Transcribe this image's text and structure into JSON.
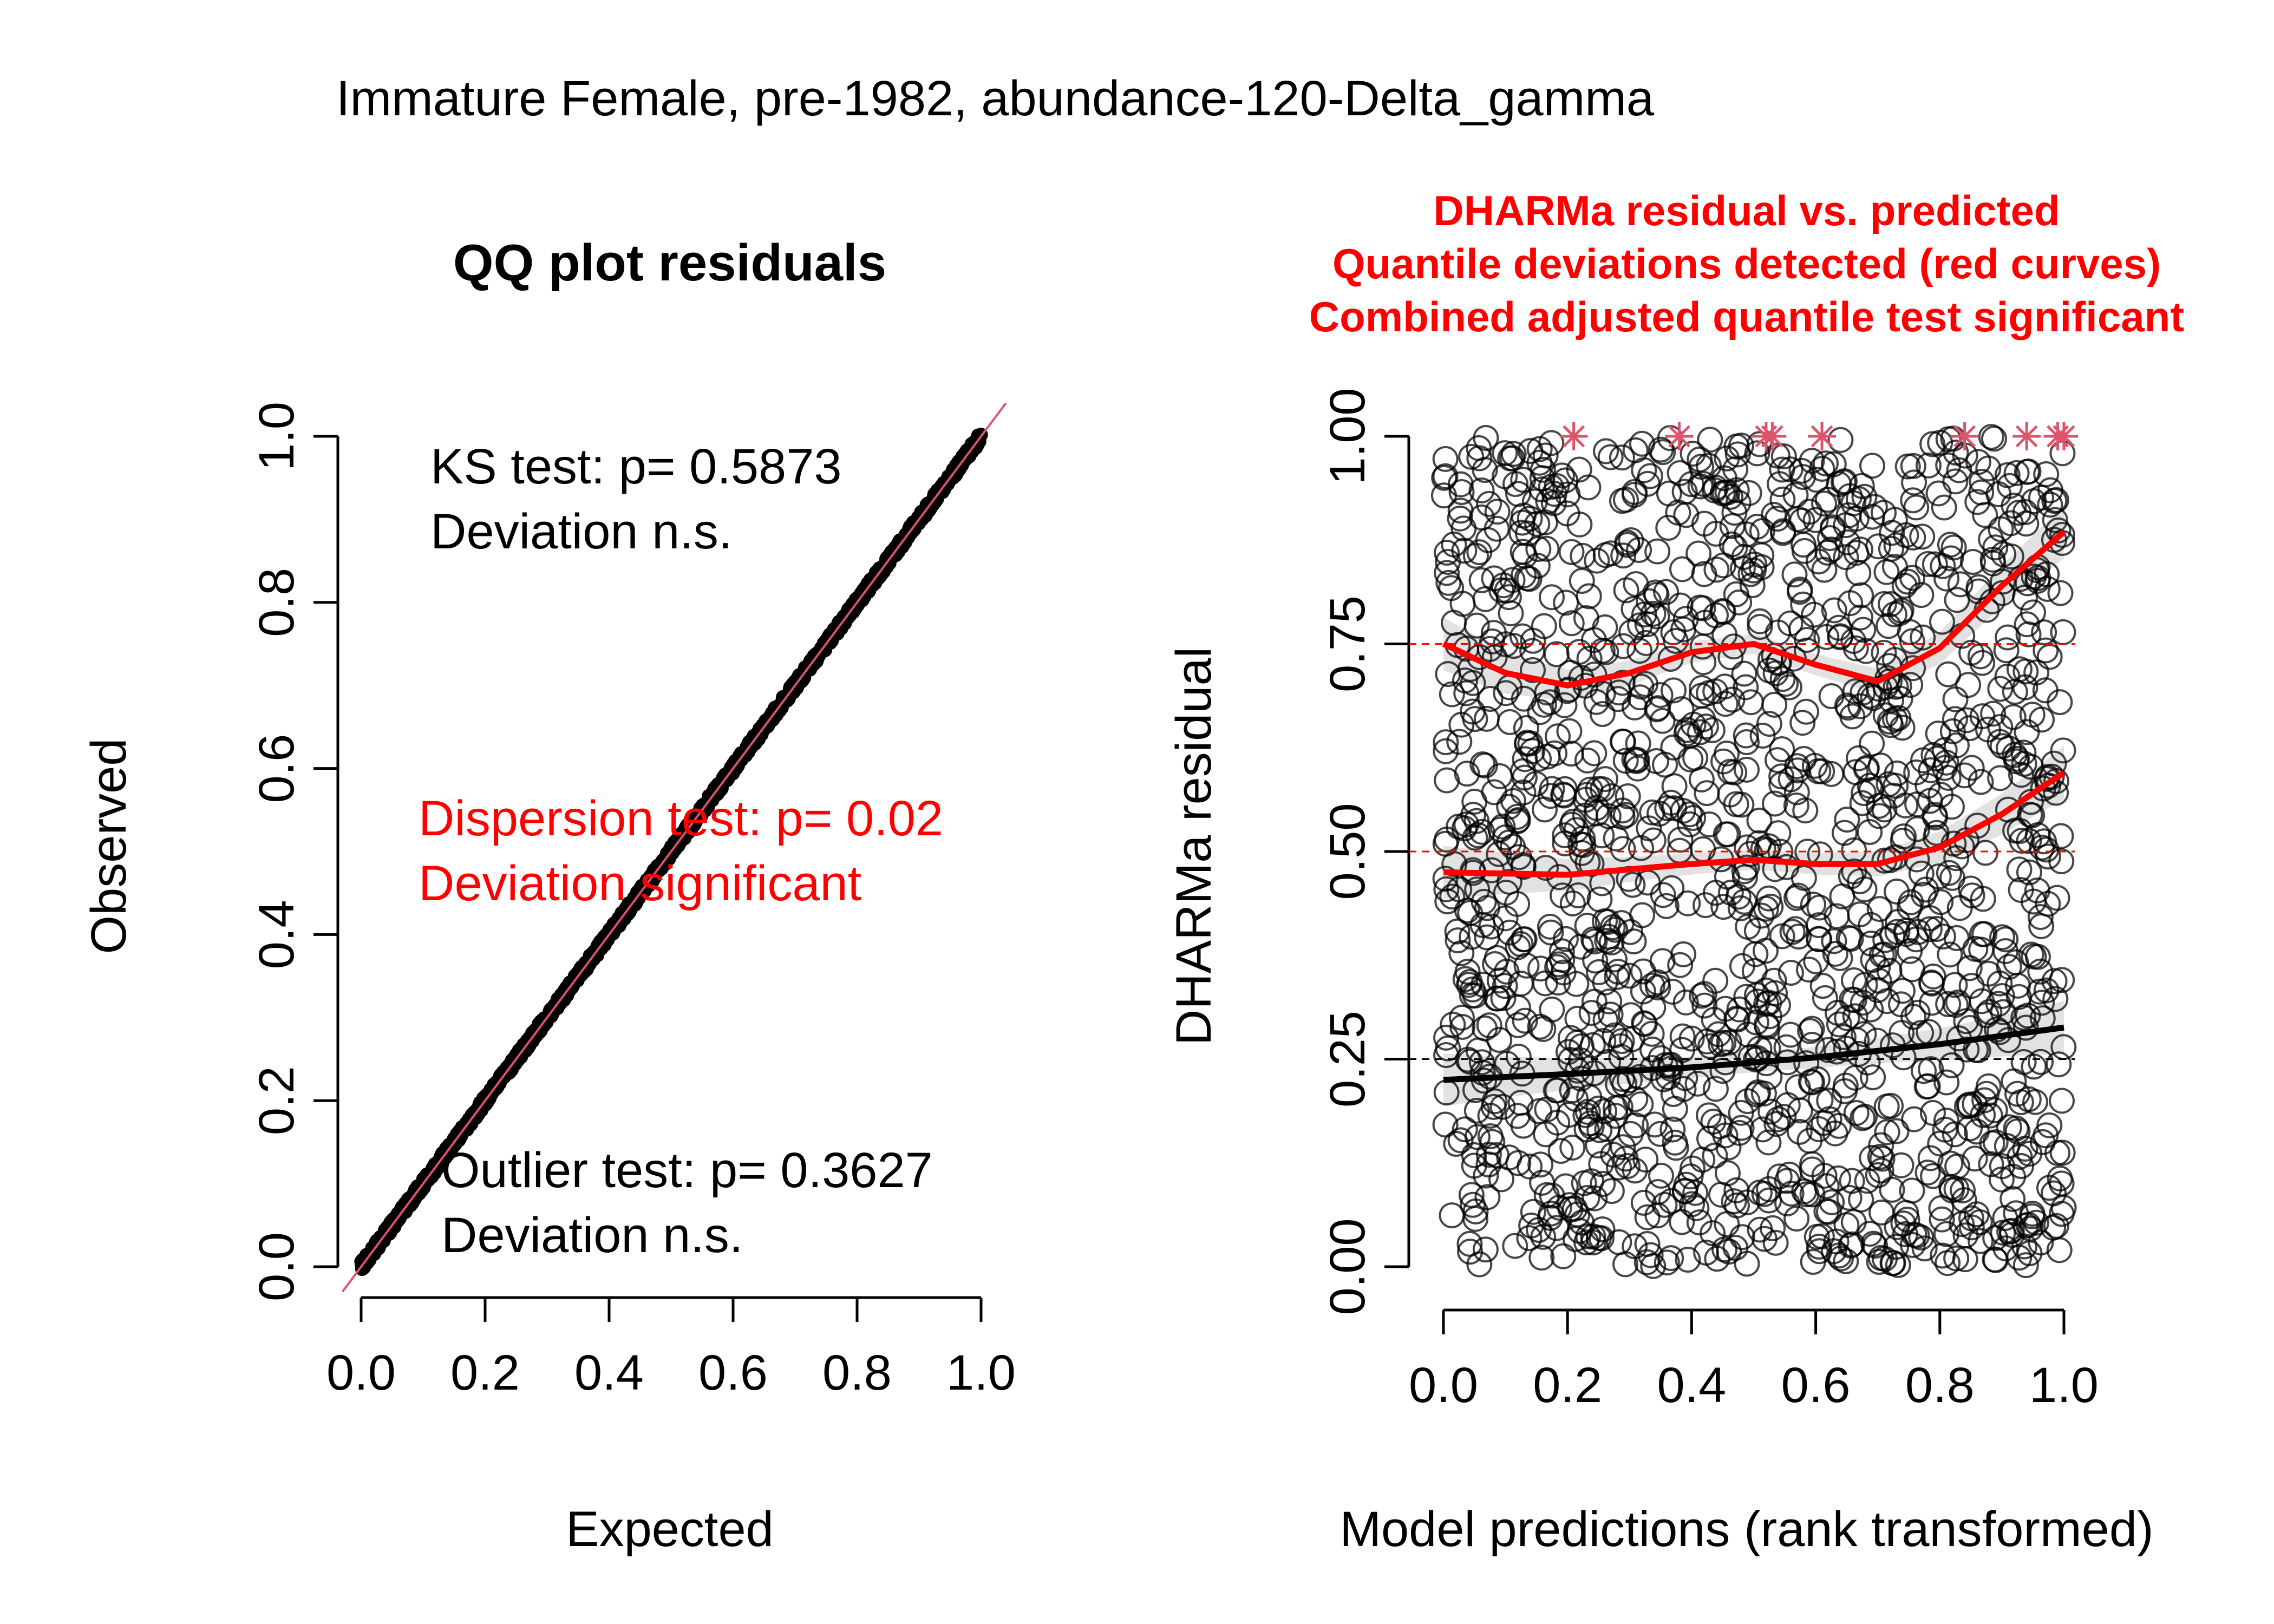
{
  "figure_title": "Immature Female, pre-1982, abundance-120-Delta_gamma",
  "colors": {
    "points": "#000000",
    "significant": "#ff0000",
    "reference_line": "#df536b",
    "band": "#bfbfbf"
  },
  "chart_data": [
    {
      "type": "scatter",
      "title": "QQ plot residuals",
      "xlabel": "Expected",
      "ylabel": "Observed",
      "xlim": [
        0,
        1
      ],
      "ylim": [
        0,
        1
      ],
      "xticks": [
        "0.0",
        "0.2",
        "0.4",
        "0.6",
        "0.8",
        "1.0"
      ],
      "yticks": [
        "0.0",
        "0.2",
        "0.4",
        "0.6",
        "0.8",
        "1.0"
      ],
      "reference_line": {
        "x": [
          0,
          1
        ],
        "y": [
          0,
          1
        ]
      },
      "series": [
        {
          "x": [
            0.0,
            0.1,
            0.2,
            0.3,
            0.4,
            0.5,
            0.6,
            0.7,
            0.8,
            0.9,
            1.0
          ],
          "y": [
            0.0,
            0.1,
            0.2,
            0.3,
            0.4,
            0.5,
            0.6,
            0.7,
            0.8,
            0.9,
            1.0
          ]
        }
      ],
      "annotations": {
        "ks": {
          "line1": "KS test: p= 0.5873",
          "line2": "Deviation  n.s."
        },
        "dispersion": {
          "line1": "Dispersion test: p= 0.02",
          "line2": "Deviation  significant"
        },
        "outlier": {
          "line1": "Outlier test: p= 0.3627",
          "line2": "Deviation  n.s."
        }
      }
    },
    {
      "type": "scatter",
      "title_lines": [
        "DHARMa residual vs. predicted",
        "Quantile deviations detected (red curves)",
        "Combined adjusted quantile test significant"
      ],
      "xlabel": "Model predictions (rank transformed)",
      "ylabel": "DHARMa residual",
      "xlim": [
        0,
        1
      ],
      "ylim": [
        0,
        1
      ],
      "xticks": [
        "0.0",
        "0.2",
        "0.4",
        "0.6",
        "0.8",
        "1.0"
      ],
      "yticks": [
        "0.00",
        "0.25",
        "0.50",
        "0.75",
        "1.00"
      ],
      "reference_lines": [
        0.25,
        0.5,
        0.75
      ],
      "n_points": 1600,
      "quantile_curves": [
        {
          "quantile": 0.25,
          "significant": false,
          "x": [
            0.0,
            0.2,
            0.4,
            0.6,
            0.8,
            1.0
          ],
          "y": [
            0.225,
            0.232,
            0.24,
            0.252,
            0.268,
            0.288
          ]
        },
        {
          "quantile": 0.5,
          "significant": true,
          "x": [
            0.0,
            0.2,
            0.4,
            0.5,
            0.6,
            0.7,
            0.8,
            0.9,
            1.0
          ],
          "y": [
            0.475,
            0.472,
            0.485,
            0.49,
            0.485,
            0.485,
            0.505,
            0.545,
            0.595
          ]
        },
        {
          "quantile": 0.75,
          "significant": true,
          "x": [
            0.0,
            0.1,
            0.2,
            0.3,
            0.4,
            0.5,
            0.6,
            0.7,
            0.8,
            0.9,
            1.0
          ],
          "y": [
            0.75,
            0.715,
            0.7,
            0.715,
            0.74,
            0.75,
            0.725,
            0.705,
            0.745,
            0.82,
            0.885
          ]
        }
      ],
      "outliers": {
        "x": [
          0.21,
          0.38,
          0.52,
          0.53,
          0.61,
          0.84,
          0.94,
          0.99,
          1.0
        ],
        "y": 1.0
      }
    }
  ]
}
